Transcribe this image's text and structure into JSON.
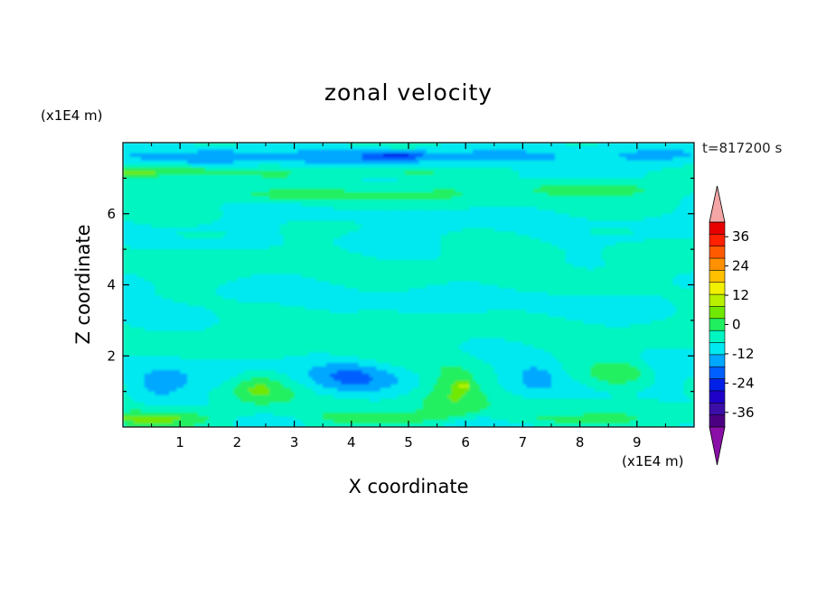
{
  "chart_data": {
    "type": "heatmap",
    "title": "zonal velocity",
    "annotation": "t=817200 s",
    "xlabel": "X coordinate",
    "ylabel": "Z coordinate",
    "x_unit": "(x1E4 m)",
    "y_unit": "(x1E4 m)",
    "xlim": [
      0,
      10
    ],
    "ylim": [
      0,
      8
    ],
    "x_ticks": [
      "1",
      "2",
      "3",
      "4",
      "5",
      "6",
      "7",
      "8",
      "9"
    ],
    "y_ticks": [
      "2",
      "4",
      "6"
    ],
    "colorbar": {
      "range": [
        -42,
        42
      ],
      "step": 6,
      "tick_labels": [
        "36",
        "24",
        "12",
        "0",
        "-12",
        "-24",
        "-36"
      ],
      "extend": "both",
      "colors": [
        "#4b0082",
        "#3b0ea8",
        "#1f00c8",
        "#0020e8",
        "#0060ff",
        "#00a8ff",
        "#00e8f0",
        "#00f5c0",
        "#20f060",
        "#70e800",
        "#b8f000",
        "#f0f000",
        "#ffc000",
        "#ff9000",
        "#ff5a00",
        "#ff2000",
        "#e80000"
      ],
      "over_color": "#f4a6a6",
      "under_color": "#8a0fa8"
    },
    "field_notes": "Mostly near-zero zonal velocity (greens); cyan patches near z=1.2 around x=0.5-1.0, 3.5-4.5, 7-7.5; yellow-green cores near x=2.3, 5.8, 8.7 at z~1.2; yellow bands at z~7.2 and near bottom boundary; cyan/blue near top boundary."
  }
}
